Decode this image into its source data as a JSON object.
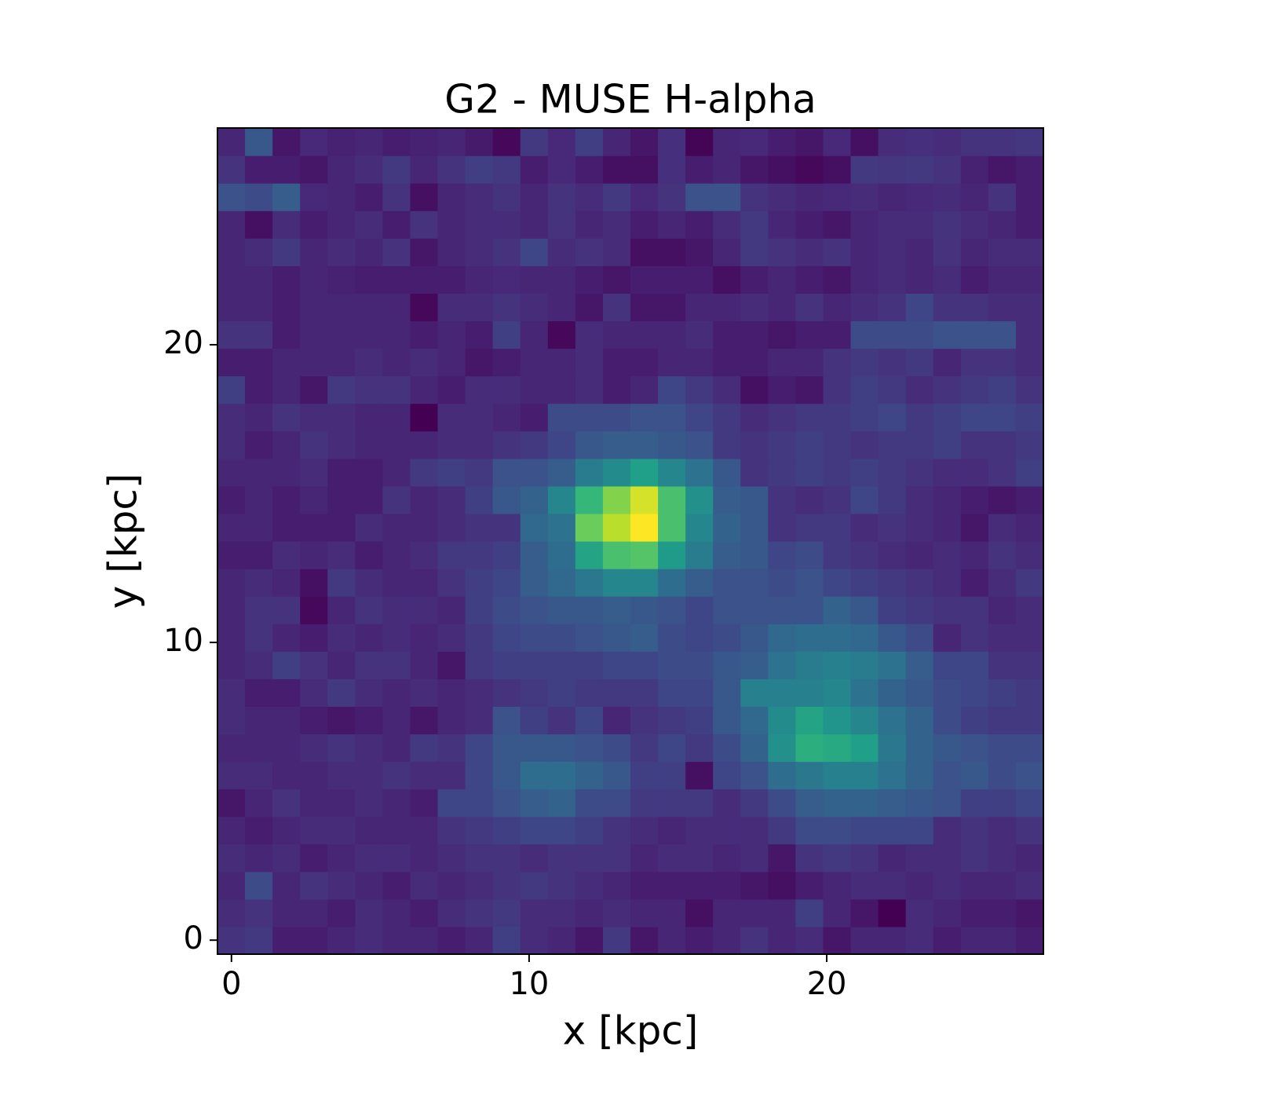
{
  "chart_data": {
    "type": "heatmap",
    "title": "G2 - MUSE H-alpha",
    "xlabel": "x [kpc]",
    "ylabel": "y [kpc]",
    "xlim": [
      -0.47,
      27.28
    ],
    "ylim": [
      -0.47,
      27.28
    ],
    "xticks": [
      0,
      10,
      20
    ],
    "yticks": [
      0,
      10,
      20
    ],
    "colormap": "viridis",
    "origin": "lower",
    "z": [
      [
        18,
        20,
        12,
        12,
        14,
        16,
        14,
        14,
        12,
        14,
        22,
        16,
        14,
        10,
        20,
        10,
        14,
        12,
        14,
        18,
        14,
        16,
        10,
        14,
        14,
        16,
        12,
        14,
        14,
        12
      ],
      [
        16,
        18,
        14,
        14,
        12,
        16,
        14,
        12,
        16,
        18,
        20,
        16,
        16,
        14,
        16,
        14,
        14,
        8,
        14,
        14,
        14,
        22,
        14,
        10,
        4,
        16,
        14,
        12,
        12,
        10
      ],
      [
        14,
        26,
        14,
        18,
        16,
        14,
        12,
        16,
        14,
        16,
        18,
        20,
        18,
        16,
        14,
        12,
        12,
        12,
        12,
        10,
        8,
        12,
        14,
        16,
        16,
        14,
        16,
        14,
        14,
        16
      ],
      [
        16,
        14,
        16,
        12,
        14,
        16,
        16,
        14,
        16,
        18,
        18,
        16,
        18,
        18,
        18,
        14,
        16,
        16,
        14,
        16,
        10,
        18,
        20,
        18,
        14,
        16,
        16,
        18,
        16,
        14
      ],
      [
        14,
        12,
        14,
        16,
        16,
        14,
        14,
        14,
        18,
        20,
        22,
        24,
        24,
        22,
        18,
        16,
        14,
        16,
        16,
        16,
        20,
        26,
        26,
        24,
        24,
        24,
        16,
        18,
        16,
        18
      ],
      [
        10,
        14,
        18,
        14,
        14,
        16,
        14,
        12,
        24,
        24,
        28,
        32,
        34,
        26,
        26,
        20,
        20,
        20,
        16,
        20,
        26,
        32,
        34,
        34,
        32,
        30,
        28,
        22,
        22,
        24
      ],
      [
        16,
        16,
        14,
        14,
        16,
        16,
        18,
        16,
        16,
        24,
        30,
        38,
        38,
        34,
        30,
        22,
        22,
        8,
        24,
        28,
        38,
        42,
        46,
        46,
        40,
        34,
        28,
        30,
        26,
        28
      ],
      [
        14,
        14,
        14,
        16,
        18,
        16,
        14,
        20,
        18,
        24,
        30,
        30,
        30,
        28,
        26,
        20,
        24,
        20,
        26,
        34,
        52,
        64,
        62,
        58,
        42,
        34,
        30,
        28,
        26,
        26
      ],
      [
        16,
        14,
        14,
        12,
        10,
        12,
        14,
        10,
        14,
        16,
        28,
        22,
        18,
        24,
        14,
        18,
        20,
        22,
        30,
        36,
        50,
        60,
        54,
        48,
        40,
        34,
        26,
        22,
        20,
        20
      ],
      [
        16,
        12,
        12,
        16,
        20,
        16,
        14,
        16,
        14,
        16,
        18,
        20,
        22,
        20,
        20,
        20,
        24,
        24,
        30,
        46,
        46,
        46,
        48,
        40,
        34,
        30,
        26,
        24,
        22,
        20
      ],
      [
        14,
        16,
        22,
        18,
        14,
        18,
        18,
        14,
        10,
        20,
        22,
        22,
        22,
        22,
        24,
        24,
        26,
        26,
        30,
        32,
        40,
        44,
        46,
        44,
        40,
        32,
        24,
        24,
        18,
        18
      ],
      [
        14,
        18,
        14,
        12,
        16,
        14,
        16,
        14,
        16,
        20,
        24,
        26,
        26,
        28,
        30,
        32,
        26,
        24,
        26,
        30,
        36,
        38,
        38,
        36,
        30,
        26,
        14,
        18,
        16,
        16
      ],
      [
        14,
        18,
        18,
        6,
        14,
        18,
        16,
        16,
        14,
        22,
        26,
        28,
        30,
        30,
        32,
        30,
        28,
        24,
        28,
        28,
        28,
        28,
        34,
        30,
        22,
        20,
        18,
        18,
        14,
        16
      ],
      [
        14,
        16,
        14,
        8,
        20,
        16,
        14,
        14,
        18,
        22,
        24,
        32,
        36,
        42,
        48,
        48,
        38,
        32,
        28,
        28,
        26,
        28,
        24,
        22,
        20,
        18,
        16,
        12,
        16,
        20
      ],
      [
        12,
        12,
        16,
        14,
        16,
        12,
        14,
        16,
        20,
        20,
        22,
        32,
        38,
        60,
        72,
        74,
        56,
        44,
        32,
        30,
        24,
        26,
        20,
        18,
        16,
        14,
        16,
        14,
        18,
        16
      ],
      [
        14,
        14,
        12,
        12,
        12,
        16,
        14,
        14,
        16,
        18,
        18,
        36,
        40,
        78,
        90,
        100,
        72,
        48,
        34,
        30,
        18,
        20,
        20,
        16,
        18,
        16,
        14,
        10,
        16,
        14
      ],
      [
        12,
        14,
        12,
        14,
        12,
        12,
        18,
        14,
        16,
        22,
        30,
        34,
        48,
        68,
        82,
        94,
        72,
        52,
        32,
        30,
        18,
        16,
        18,
        24,
        20,
        16,
        14,
        12,
        10,
        12
      ],
      [
        14,
        14,
        14,
        16,
        12,
        12,
        14,
        20,
        22,
        20,
        28,
        28,
        32,
        44,
        50,
        58,
        48,
        40,
        30,
        18,
        20,
        22,
        20,
        22,
        20,
        18,
        16,
        16,
        18,
        22
      ],
      [
        16,
        12,
        14,
        18,
        16,
        14,
        14,
        14,
        16,
        16,
        18,
        20,
        24,
        30,
        32,
        32,
        30,
        28,
        20,
        18,
        20,
        22,
        20,
        18,
        20,
        20,
        22,
        18,
        18,
        20
      ],
      [
        16,
        14,
        18,
        16,
        16,
        14,
        14,
        4,
        16,
        16,
        14,
        12,
        26,
        26,
        26,
        28,
        28,
        24,
        20,
        16,
        18,
        20,
        20,
        22,
        24,
        20,
        22,
        24,
        24,
        22
      ],
      [
        22,
        12,
        14,
        10,
        20,
        18,
        18,
        14,
        12,
        16,
        16,
        14,
        14,
        16,
        12,
        14,
        24,
        20,
        16,
        8,
        12,
        10,
        18,
        22,
        20,
        16,
        18,
        20,
        22,
        18
      ],
      [
        12,
        12,
        14,
        14,
        14,
        16,
        14,
        16,
        14,
        10,
        12,
        14,
        14,
        16,
        12,
        12,
        14,
        14,
        12,
        12,
        14,
        14,
        18,
        20,
        18,
        20,
        14,
        18,
        18,
        16
      ],
      [
        18,
        18,
        12,
        14,
        14,
        14,
        14,
        12,
        14,
        12,
        22,
        14,
        6,
        16,
        14,
        14,
        14,
        16,
        12,
        12,
        10,
        12,
        12,
        26,
        26,
        26,
        28,
        28,
        28,
        16
      ],
      [
        14,
        14,
        12,
        14,
        14,
        14,
        14,
        6,
        16,
        16,
        18,
        16,
        14,
        10,
        18,
        10,
        10,
        14,
        14,
        16,
        14,
        18,
        14,
        16,
        18,
        24,
        18,
        18,
        16,
        16
      ],
      [
        14,
        14,
        12,
        14,
        13,
        12,
        12,
        12,
        12,
        14,
        15,
        14,
        14,
        12,
        10,
        12,
        12,
        12,
        8,
        12,
        14,
        12,
        10,
        14,
        16,
        14,
        16,
        12,
        14,
        14
      ],
      [
        14,
        16,
        20,
        14,
        16,
        14,
        18,
        10,
        14,
        16,
        18,
        24,
        16,
        18,
        16,
        8,
        8,
        10,
        14,
        20,
        18,
        16,
        18,
        14,
        16,
        14,
        18,
        14,
        16,
        16
      ],
      [
        14,
        8,
        16,
        12,
        14,
        16,
        12,
        18,
        14,
        16,
        16,
        14,
        18,
        14,
        16,
        12,
        14,
        12,
        16,
        20,
        14,
        12,
        10,
        14,
        16,
        16,
        18,
        16,
        14,
        12
      ],
      [
        28,
        26,
        32,
        15,
        14,
        12,
        18,
        8,
        14,
        16,
        18,
        14,
        18,
        16,
        20,
        15,
        18,
        28,
        28,
        18,
        16,
        14,
        15,
        16,
        14,
        15,
        16,
        14,
        18,
        12
      ],
      [
        18,
        12,
        12,
        10,
        14,
        16,
        20,
        14,
        18,
        22,
        20,
        12,
        15,
        12,
        8,
        8,
        17,
        12,
        14,
        10,
        8,
        6,
        8,
        20,
        19,
        20,
        18,
        13,
        10,
        12
      ],
      [
        14,
        30,
        10,
        15,
        13,
        14,
        12,
        13,
        14,
        11,
        6,
        20,
        15,
        22,
        14,
        10,
        17,
        5,
        14,
        15,
        12,
        10,
        15,
        8,
        16,
        17,
        16,
        18,
        18,
        19
      ]
    ]
  }
}
